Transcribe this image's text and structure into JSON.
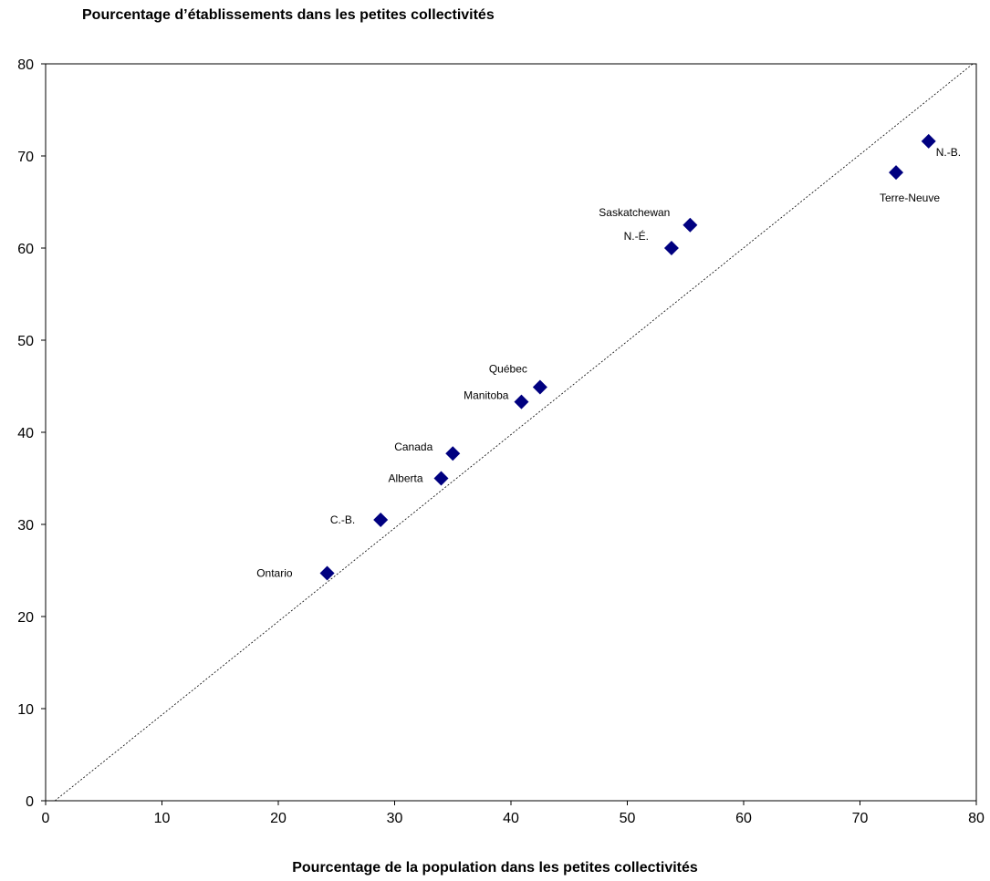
{
  "chart_data": {
    "type": "scatter",
    "title": "Pourcentage d’établissements dans les petites collectivités",
    "xlabel": "Pourcentage de la population dans les petites collectivités",
    "ylabel": "",
    "xlim": [
      0,
      80
    ],
    "ylim": [
      0,
      80
    ],
    "xticks": [
      0,
      10,
      20,
      30,
      40,
      50,
      60,
      70,
      80
    ],
    "yticks": [
      0,
      10,
      20,
      30,
      40,
      50,
      60,
      70,
      80
    ],
    "grid": false,
    "marker": "diamond",
    "marker_color": "#000080",
    "reference_line": {
      "style": "dotted",
      "from": [
        0.8,
        0
      ],
      "to": [
        80,
        80.3
      ]
    },
    "points": [
      {
        "label": "Ontario",
        "x": 24.2,
        "y": 24.7
      },
      {
        "label": "C.-B.",
        "x": 28.8,
        "y": 30.5
      },
      {
        "label": "Alberta",
        "x": 34.0,
        "y": 35.0
      },
      {
        "label": "Canada",
        "x": 35.0,
        "y": 37.7
      },
      {
        "label": "Manitoba",
        "x": 40.9,
        "y": 43.3
      },
      {
        "label": "Québec",
        "x": 42.5,
        "y": 44.9
      },
      {
        "label": "N.-É.",
        "x": 53.8,
        "y": 60.0
      },
      {
        "label": "Saskatchewan",
        "x": 55.4,
        "y": 62.5
      },
      {
        "label": "Terre-Neuve",
        "x": 73.1,
        "y": 68.2
      },
      {
        "label": "N.-B.",
        "x": 75.9,
        "y": 71.6
      }
    ]
  }
}
